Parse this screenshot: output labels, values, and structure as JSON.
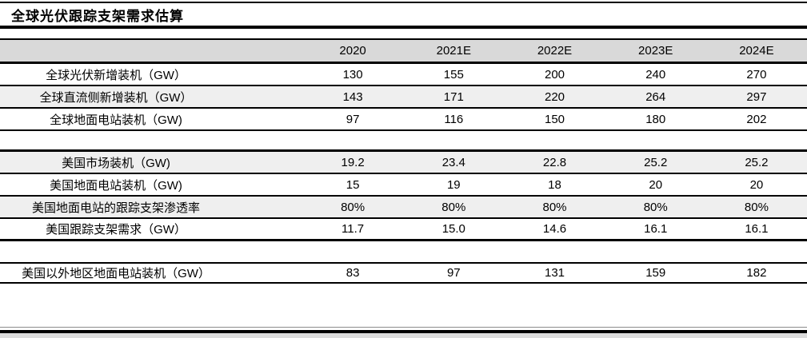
{
  "title": "全球光伏跟踪支架需求估算",
  "table": {
    "columns": [
      "2020",
      "2021E",
      "2022E",
      "2023E",
      "2024E"
    ],
    "rows": [
      {
        "label": "全球光伏新增装机（GW）",
        "values": [
          "130",
          "155",
          "200",
          "240",
          "270"
        ]
      },
      {
        "label": "全球直流侧新增装机（GW）",
        "values": [
          "143",
          "171",
          "220",
          "264",
          "297"
        ]
      },
      {
        "label": "全球地面电站装机（GW)",
        "values": [
          "97",
          "116",
          "150",
          "180",
          "202"
        ]
      },
      {
        "label": "美国市场装机（GW)",
        "values": [
          "19.2",
          "23.4",
          "22.8",
          "25.2",
          "25.2"
        ]
      },
      {
        "label": "美国地面电站装机（GW)",
        "values": [
          "15",
          "19",
          "18",
          "20",
          "20"
        ]
      },
      {
        "label": "美国地面电站的跟踪支架渗透率",
        "values": [
          "80%",
          "80%",
          "80%",
          "80%",
          "80%"
        ]
      },
      {
        "label": "美国跟踪支架需求（GW）",
        "values": [
          "11.7",
          "15.0",
          "14.6",
          "16.1",
          "16.1"
        ]
      },
      {
        "label": "美国以外地区地面电站装机（GW）",
        "values": [
          "83",
          "97",
          "131",
          "159",
          "182"
        ]
      }
    ]
  },
  "colors": {
    "header_bg": "#d9d9d9",
    "stripe_bg": "#efefef",
    "rule": "#000000",
    "bottom_strip": "#dcdcdc"
  }
}
